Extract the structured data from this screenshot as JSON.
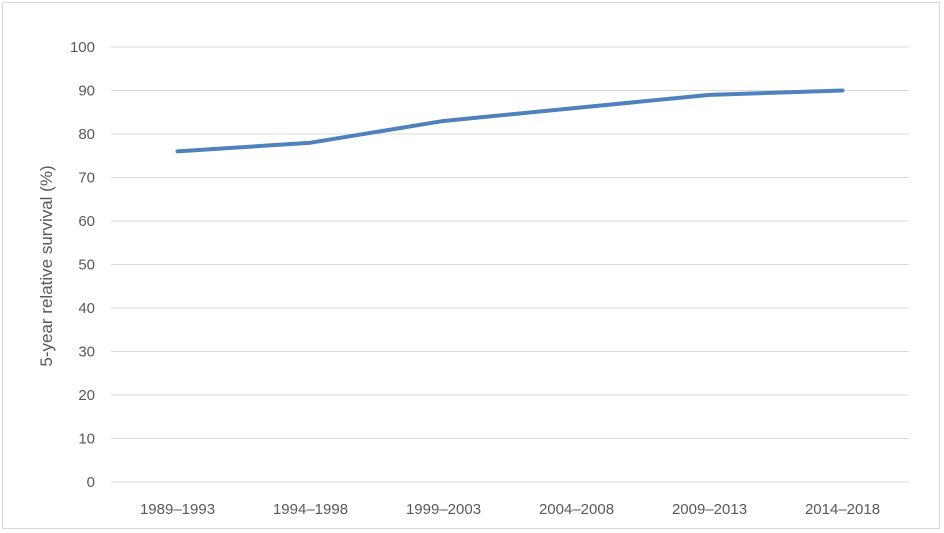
{
  "chart_data": {
    "type": "line",
    "title": "",
    "xlabel": "",
    "ylabel": "5-year relative survival (%)",
    "categories": [
      "1989–1993",
      "1994–1998",
      "1999–2003",
      "2004–2008",
      "2009–2013",
      "2014–2018"
    ],
    "series": [
      {
        "values": [
          76,
          78,
          83,
          86,
          89,
          90
        ],
        "color": "#4f81bd"
      }
    ],
    "ylim": [
      0,
      100
    ],
    "yticks": [
      0,
      10,
      20,
      30,
      40,
      50,
      60,
      70,
      80,
      90,
      100
    ],
    "grid": true,
    "legend": "none",
    "colors": {
      "gridline": "#d9d9d9",
      "text": "#595959",
      "border": "#d9d9d9"
    }
  }
}
